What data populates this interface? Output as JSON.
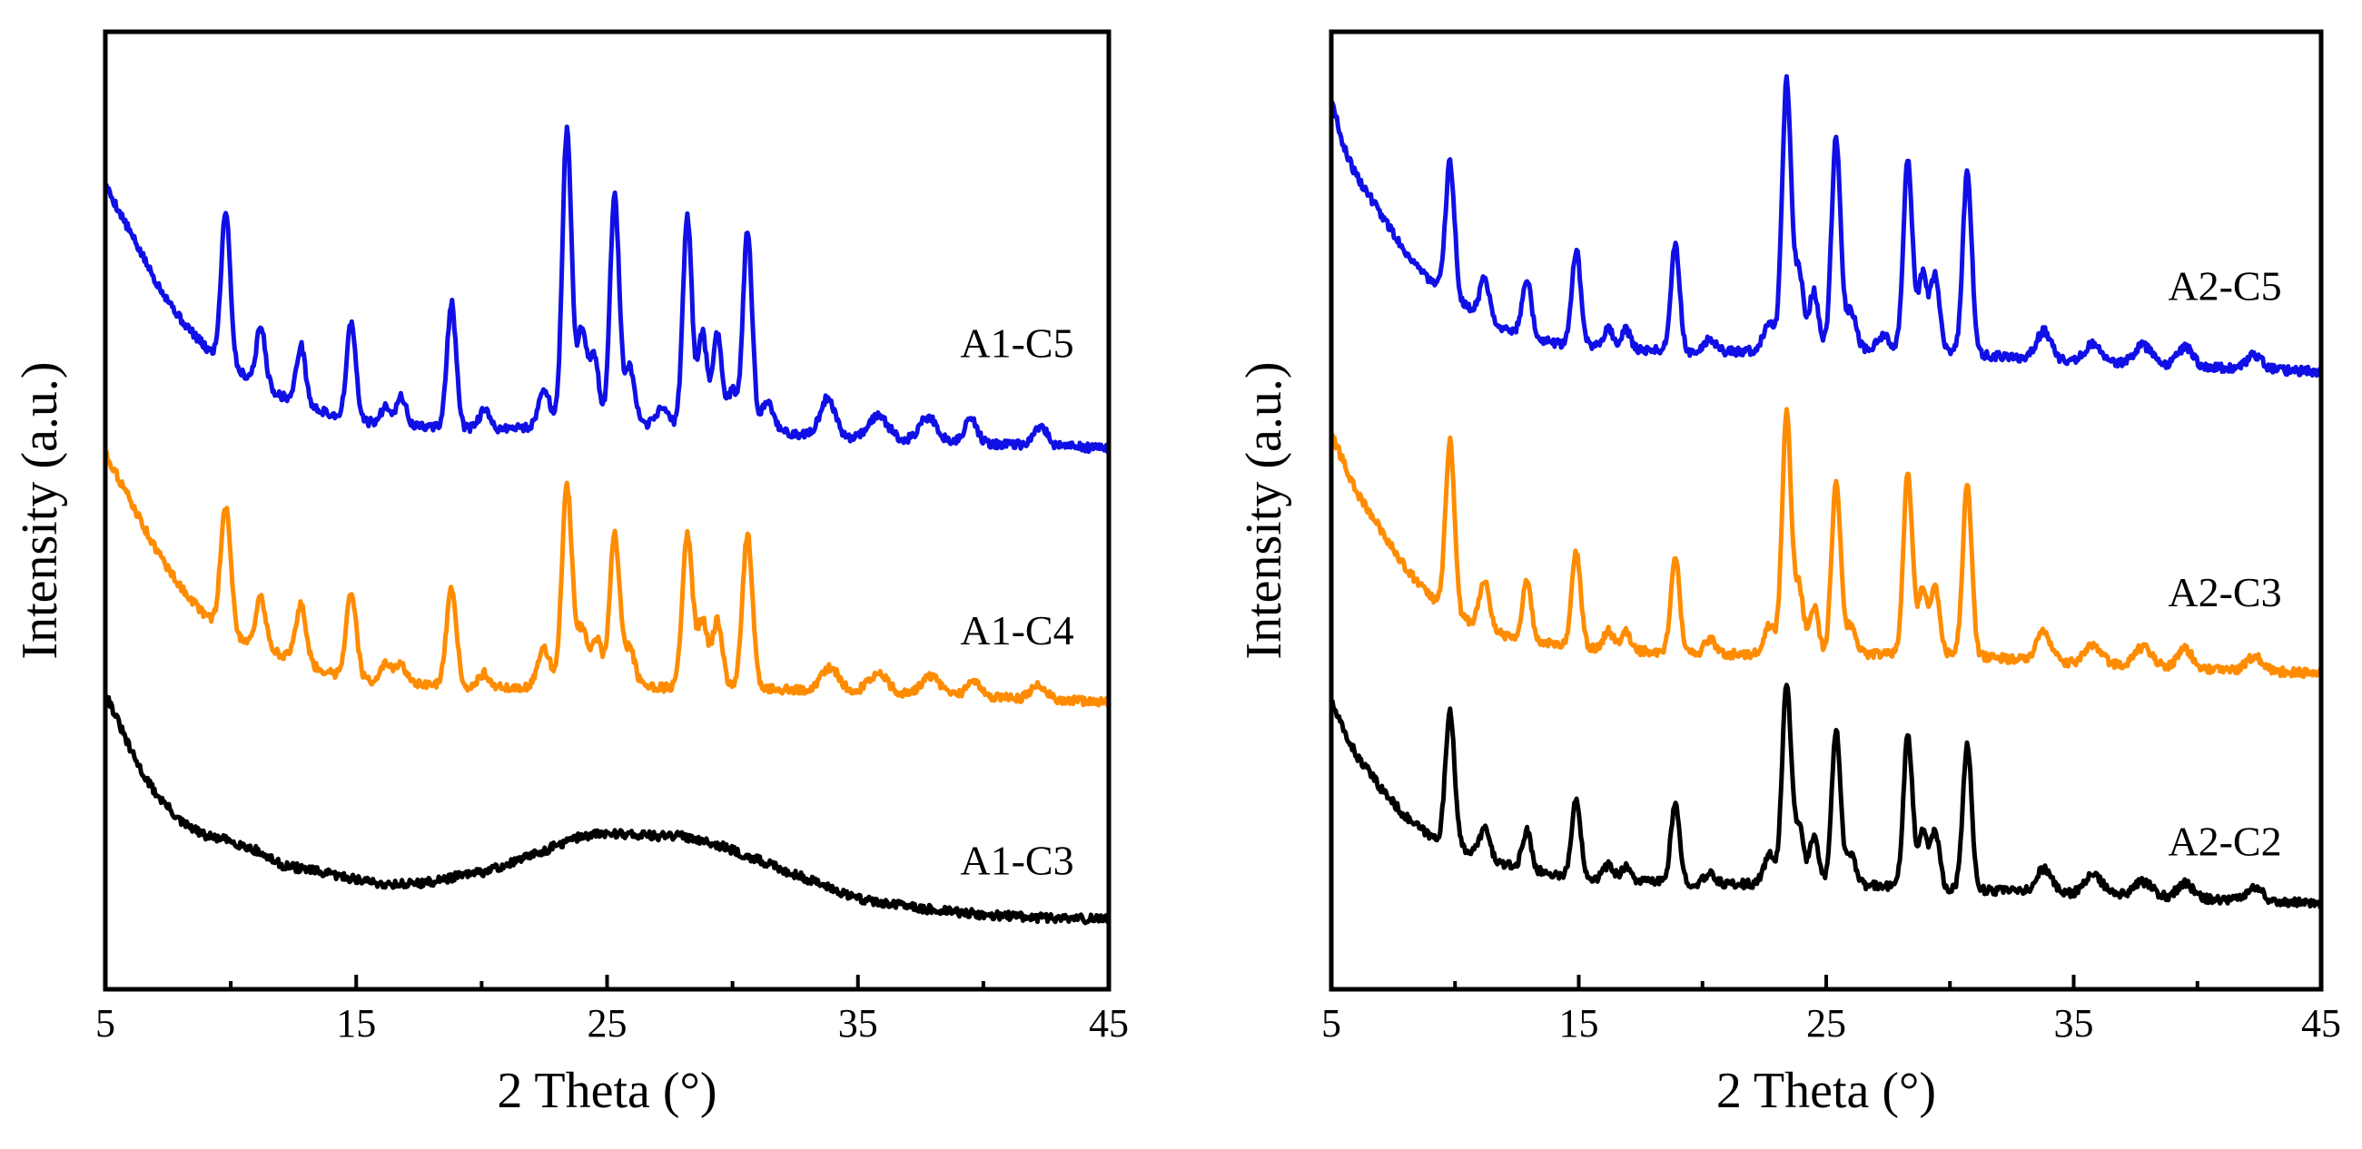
{
  "chart_data": [
    {
      "type": "line",
      "panel": "left",
      "xlabel": "2 Theta (°)",
      "ylabel": "Intensity (a.u.)",
      "xlim": [
        5,
        45
      ],
      "xticks": [
        5,
        15,
        25,
        35,
        45
      ],
      "ylim": [
        0,
        100
      ],
      "series": [
        {
          "name": "A1-C5",
          "color": "#1010e6",
          "baseline": [
            [
              5,
              84
            ],
            [
              6,
              79
            ],
            [
              7,
              74
            ],
            [
              8,
              70
            ],
            [
              9,
              67
            ],
            [
              10,
              65
            ],
            [
              12,
              62
            ],
            [
              14,
              60
            ],
            [
              16,
              59
            ],
            [
              20,
              58.5
            ],
            [
              25,
              59
            ],
            [
              30,
              58.5
            ],
            [
              35,
              57.5
            ],
            [
              40,
              57
            ],
            [
              45,
              56.5
            ]
          ],
          "peaks": [
            [
              9.8,
              16,
              0.18
            ],
            [
              11.2,
              6,
              0.18
            ],
            [
              12.8,
              6,
              0.18
            ],
            [
              14.8,
              10,
              0.18
            ],
            [
              16.2,
              2,
              0.2
            ],
            [
              16.8,
              3,
              0.18
            ],
            [
              18.8,
              13,
              0.18
            ],
            [
              20.1,
              2,
              0.2
            ],
            [
              22.5,
              4,
              0.22
            ],
            [
              23.4,
              31,
              0.18
            ],
            [
              24,
              10,
              0.2
            ],
            [
              24.5,
              7,
              0.18
            ],
            [
              25.3,
              24,
              0.18
            ],
            [
              25.9,
              6,
              0.2
            ],
            [
              27.2,
              2,
              0.25
            ],
            [
              28.2,
              22,
              0.18
            ],
            [
              28.8,
              10,
              0.18
            ],
            [
              29.4,
              10,
              0.18
            ],
            [
              30,
              4,
              0.2
            ],
            [
              30.6,
              21,
              0.18
            ],
            [
              31.4,
              3,
              0.25
            ],
            [
              33.8,
              4,
              0.3
            ],
            [
              35.8,
              2.5,
              0.4
            ],
            [
              37.8,
              2.5,
              0.35
            ],
            [
              39.5,
              2.5,
              0.25
            ],
            [
              42.3,
              2,
              0.25
            ]
          ]
        },
        {
          "name": "A1-C4",
          "color": "#ff8c00",
          "baseline": [
            [
              5,
              56
            ],
            [
              6,
              51
            ],
            [
              7,
              46
            ],
            [
              8,
              42
            ],
            [
              9,
              39
            ],
            [
              10,
              37
            ],
            [
              12,
              35
            ],
            [
              14,
              33
            ],
            [
              16,
              32
            ],
            [
              20,
              31.5
            ],
            [
              25,
              31.5
            ],
            [
              30,
              31.5
            ],
            [
              35,
              31
            ],
            [
              40,
              30.5
            ],
            [
              45,
              30
            ]
          ],
          "peaks": [
            [
              9.8,
              13,
              0.2
            ],
            [
              11.2,
              5,
              0.2
            ],
            [
              12.8,
              6,
              0.2
            ],
            [
              14.8,
              9,
              0.2
            ],
            [
              16.2,
              2,
              0.22
            ],
            [
              16.8,
              2,
              0.2
            ],
            [
              18.8,
              10,
              0.2
            ],
            [
              20.1,
              1.5,
              0.22
            ],
            [
              22.5,
              4,
              0.25
            ],
            [
              23.4,
              21,
              0.2
            ],
            [
              24,
              6,
              0.22
            ],
            [
              24.6,
              5,
              0.2
            ],
            [
              25.3,
              16,
              0.2
            ],
            [
              25.9,
              4,
              0.22
            ],
            [
              28.2,
              16,
              0.2
            ],
            [
              28.8,
              7,
              0.2
            ],
            [
              29.4,
              7,
              0.2
            ],
            [
              30.6,
              16,
              0.2
            ],
            [
              33.9,
              2.5,
              0.35
            ],
            [
              35.8,
              2,
              0.4
            ],
            [
              37.9,
              2,
              0.35
            ],
            [
              39.6,
              1.5,
              0.3
            ],
            [
              42.2,
              1.5,
              0.3
            ]
          ]
        },
        {
          "name": "A1-C3",
          "color": "#000000",
          "baseline": [
            [
              5,
              31
            ],
            [
              5.5,
              28
            ],
            [
              6,
              25
            ],
            [
              6.5,
              22.5
            ],
            [
              7,
              20.5
            ],
            [
              7.5,
              19
            ],
            [
              8,
              17.5
            ],
            [
              9,
              16
            ],
            [
              10,
              15.5
            ],
            [
              11,
              14.5
            ],
            [
              12,
              13
            ],
            [
              13,
              12.5
            ],
            [
              14,
              12
            ],
            [
              15,
              11.5
            ],
            [
              16,
              11
            ],
            [
              17,
              11
            ],
            [
              18,
              11.2
            ],
            [
              19,
              11.8
            ],
            [
              20,
              12.2
            ],
            [
              21,
              13
            ],
            [
              22,
              14
            ],
            [
              23,
              15
            ],
            [
              24,
              16
            ],
            [
              25,
              16.3
            ],
            [
              26,
              16.2
            ],
            [
              27,
              16
            ],
            [
              28,
              16
            ],
            [
              29,
              15.5
            ],
            [
              30,
              14.5
            ],
            [
              31,
              13.5
            ],
            [
              32,
              12.5
            ],
            [
              33,
              11.5
            ],
            [
              34,
              10.5
            ],
            [
              35,
              9.5
            ],
            [
              36,
              9
            ],
            [
              38,
              8.3
            ],
            [
              40,
              7.8
            ],
            [
              42,
              7.5
            ],
            [
              45,
              7.3
            ]
          ],
          "peaks": []
        }
      ]
    },
    {
      "type": "line",
      "panel": "right",
      "xlabel": "2 Theta (°)",
      "ylabel": "Intensity (a.u.)",
      "xlim": [
        5,
        45
      ],
      "xticks": [
        5,
        15,
        25,
        35,
        45
      ],
      "ylim": [
        0,
        100
      ],
      "series": [
        {
          "name": "A2-C5",
          "color": "#1010e6",
          "baseline": [
            [
              5,
              93
            ],
            [
              5.5,
              88
            ],
            [
              6,
              85
            ],
            [
              7,
              81
            ],
            [
              8,
              77
            ],
            [
              9,
              74
            ],
            [
              10,
              72
            ],
            [
              12,
              69
            ],
            [
              14,
              67.5
            ],
            [
              16,
              67
            ],
            [
              20,
              66.5
            ],
            [
              25,
              67
            ],
            [
              30,
              66.5
            ],
            [
              35,
              65.5
            ],
            [
              40,
              65
            ],
            [
              45,
              64.5
            ]
          ],
          "peaks": [
            [
              9.8,
              14,
              0.18
            ],
            [
              11.2,
              4,
              0.2
            ],
            [
              12.9,
              6,
              0.18
            ],
            [
              14.9,
              10,
              0.18
            ],
            [
              16.2,
              2,
              0.2
            ],
            [
              16.9,
              2,
              0.18
            ],
            [
              18.9,
              11,
              0.18
            ],
            [
              20.3,
              1.5,
              0.22
            ],
            [
              22.7,
              3,
              0.22
            ],
            [
              23.4,
              28,
              0.18
            ],
            [
              23.9,
              8,
              0.18
            ],
            [
              24.5,
              6,
              0.18
            ],
            [
              25.4,
              22,
              0.18
            ],
            [
              26,
              4,
              0.2
            ],
            [
              27.3,
              1.5,
              0.25
            ],
            [
              28.3,
              20,
              0.18
            ],
            [
              28.9,
              8,
              0.18
            ],
            [
              29.4,
              8,
              0.18
            ],
            [
              30.7,
              19,
              0.18
            ],
            [
              33.8,
              3,
              0.3
            ],
            [
              35.8,
              2,
              0.35
            ],
            [
              37.8,
              2,
              0.35
            ],
            [
              39.5,
              2,
              0.3
            ],
            [
              42.3,
              1.5,
              0.3
            ]
          ]
        },
        {
          "name": "A2-C3",
          "color": "#ff8c00",
          "baseline": [
            [
              5,
              58
            ],
            [
              5.5,
              55
            ],
            [
              6,
              52
            ],
            [
              7,
              48
            ],
            [
              8,
              44
            ],
            [
              9,
              41
            ],
            [
              10,
              39
            ],
            [
              12,
              37
            ],
            [
              14,
              36
            ],
            [
              16,
              35.5
            ],
            [
              20,
              35
            ],
            [
              25,
              35
            ],
            [
              30,
              35
            ],
            [
              35,
              34
            ],
            [
              40,
              33.5
            ],
            [
              45,
              33
            ]
          ],
          "peaks": [
            [
              9.8,
              18,
              0.18
            ],
            [
              11.2,
              5,
              0.2
            ],
            [
              12.9,
              6,
              0.18
            ],
            [
              14.9,
              10,
              0.18
            ],
            [
              16.2,
              2,
              0.2
            ],
            [
              16.9,
              2,
              0.18
            ],
            [
              18.9,
              10,
              0.18
            ],
            [
              20.3,
              1.5,
              0.22
            ],
            [
              22.7,
              3,
              0.22
            ],
            [
              23.4,
              25,
              0.18
            ],
            [
              23.9,
              7,
              0.18
            ],
            [
              24.5,
              5,
              0.18
            ],
            [
              25.4,
              18,
              0.18
            ],
            [
              26,
              3,
              0.2
            ],
            [
              28.3,
              19,
              0.18
            ],
            [
              28.9,
              7,
              0.18
            ],
            [
              29.4,
              7,
              0.18
            ],
            [
              30.7,
              18,
              0.18
            ],
            [
              33.8,
              3,
              0.3
            ],
            [
              35.8,
              2,
              0.35
            ],
            [
              37.8,
              2,
              0.35
            ],
            [
              39.5,
              2,
              0.3
            ],
            [
              42.3,
              1.5,
              0.3
            ]
          ]
        },
        {
          "name": "A2-C2",
          "color": "#000000",
          "baseline": [
            [
              5,
              30
            ],
            [
              5.5,
              27
            ],
            [
              6,
              24.5
            ],
            [
              7,
              21
            ],
            [
              8,
              18
            ],
            [
              9,
              16
            ],
            [
              10,
              15
            ],
            [
              12,
              13
            ],
            [
              14,
              12
            ],
            [
              16,
              11.5
            ],
            [
              20,
              11
            ],
            [
              25,
              11
            ],
            [
              30,
              10.5
            ],
            [
              35,
              10
            ],
            [
              40,
              9.5
            ],
            [
              45,
              9
            ]
          ],
          "peaks": [
            [
              9.8,
              14,
              0.18
            ],
            [
              11.2,
              3,
              0.2
            ],
            [
              12.9,
              4,
              0.18
            ],
            [
              14.9,
              8,
              0.18
            ],
            [
              16.2,
              1.5,
              0.2
            ],
            [
              16.9,
              1.5,
              0.18
            ],
            [
              18.9,
              8,
              0.18
            ],
            [
              20.3,
              1,
              0.22
            ],
            [
              22.7,
              3,
              0.22
            ],
            [
              23.4,
              21,
              0.18
            ],
            [
              23.9,
              6,
              0.18
            ],
            [
              24.5,
              5,
              0.18
            ],
            [
              25.4,
              16,
              0.18
            ],
            [
              26,
              3,
              0.2
            ],
            [
              28.3,
              16,
              0.18
            ],
            [
              28.9,
              6,
              0.18
            ],
            [
              29.4,
              6,
              0.18
            ],
            [
              30.7,
              15,
              0.18
            ],
            [
              33.8,
              2.5,
              0.3
            ],
            [
              35.8,
              2,
              0.35
            ],
            [
              37.8,
              1.5,
              0.35
            ],
            [
              39.5,
              1.5,
              0.3
            ],
            [
              42.3,
              1.5,
              0.3
            ]
          ]
        }
      ]
    }
  ]
}
